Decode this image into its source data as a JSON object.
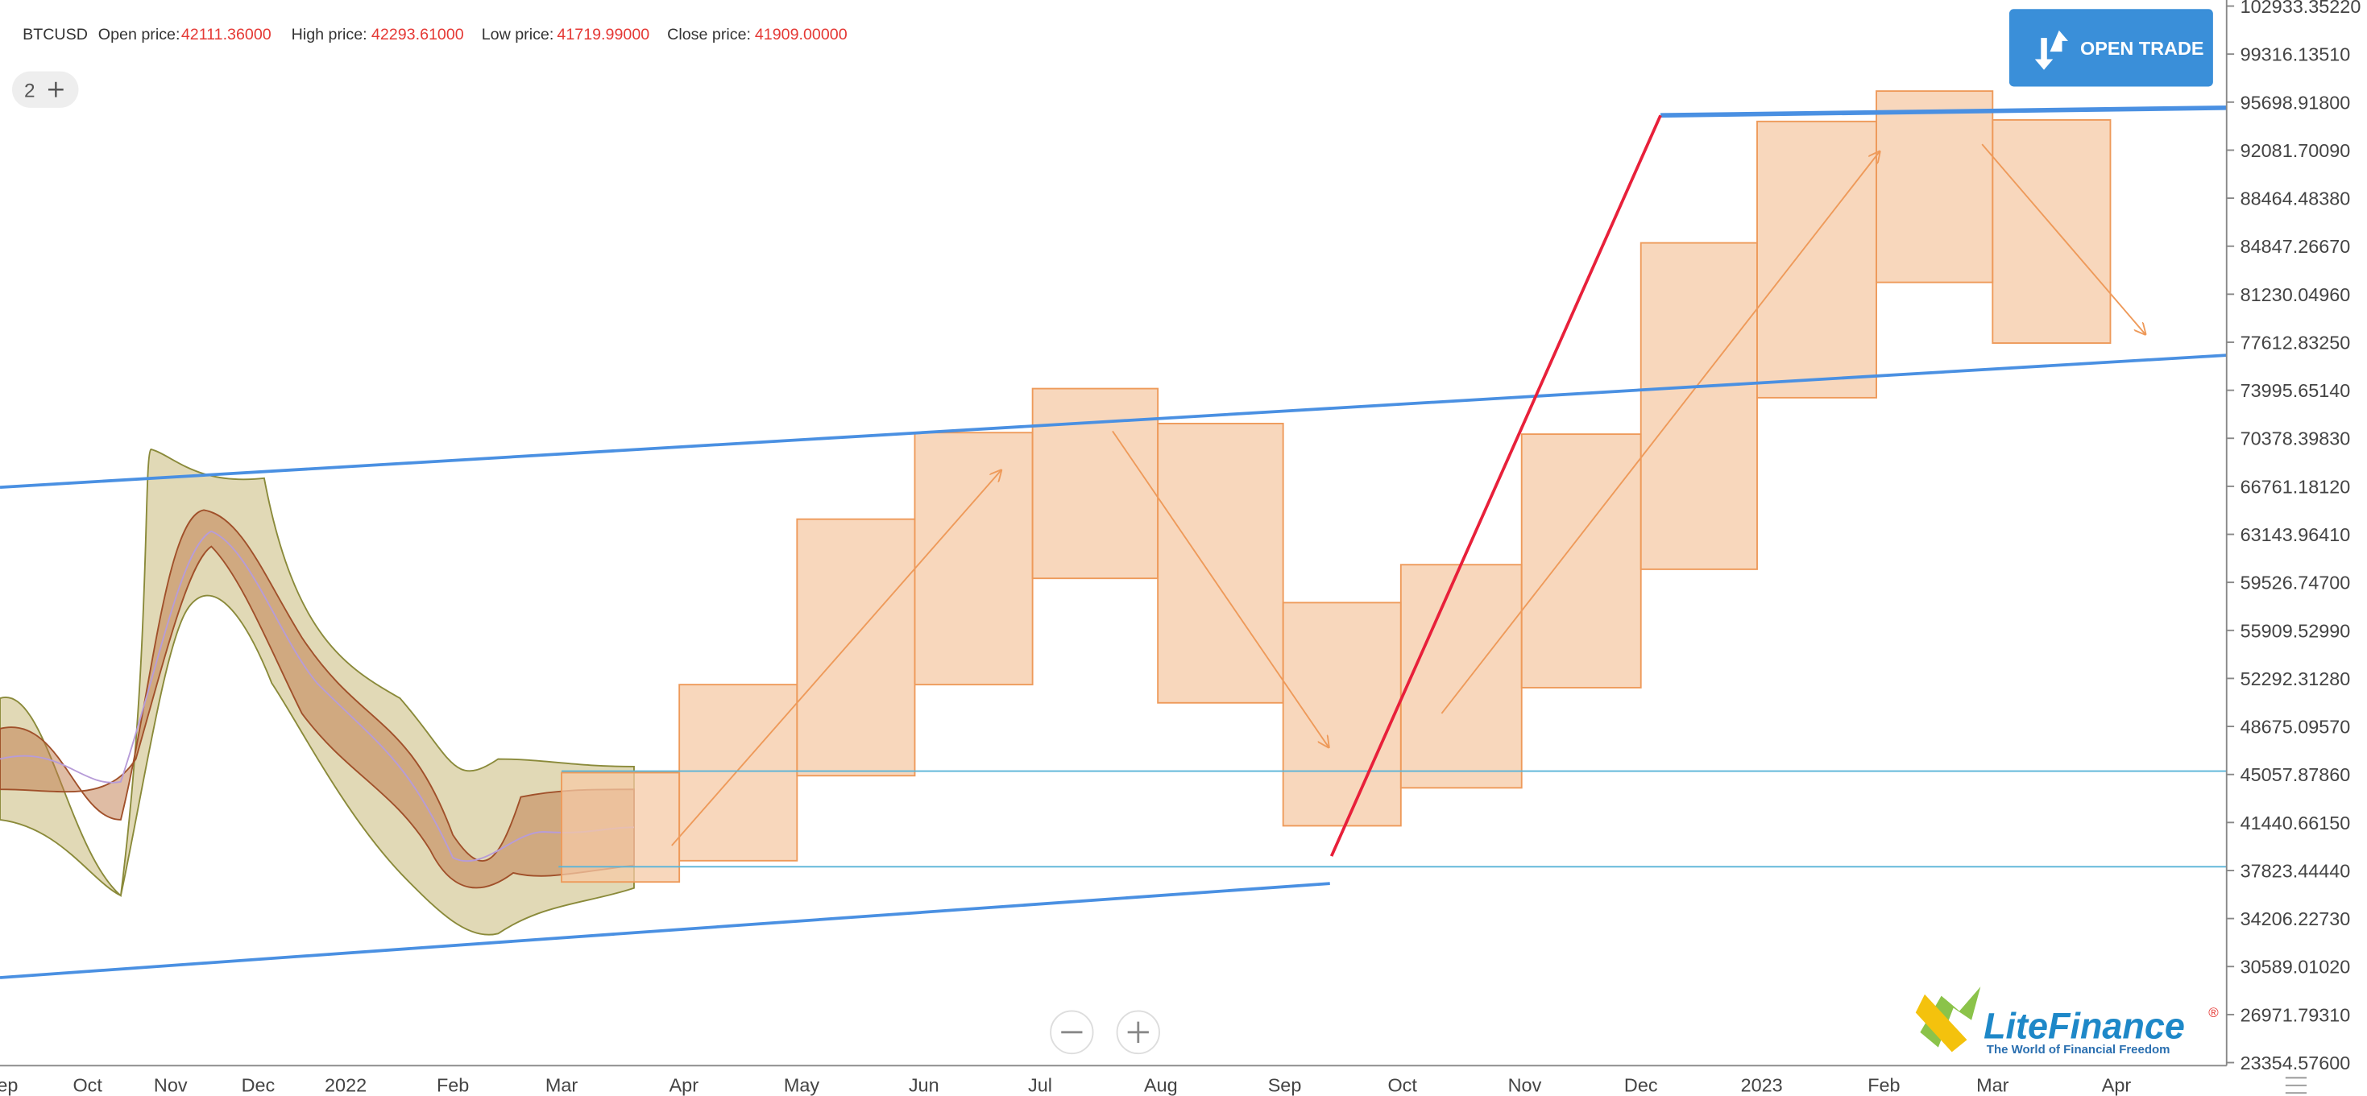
{
  "header": {
    "symbol": "BTCUSD",
    "fields": [
      {
        "label": "Open price:",
        "value": "42111.36000"
      },
      {
        "label": "High price:",
        "value": "42293.61000"
      },
      {
        "label": "Low price:",
        "value": "41719.99000"
      },
      {
        "label": "Close price:",
        "value": "41909.00000"
      }
    ]
  },
  "layers_badge": "2",
  "button": "OPEN TRADE",
  "y_axis": [
    "102933.35220",
    "99316.13510",
    "95698.91800",
    "92081.70090",
    "88464.48380",
    "84847.26670",
    "81230.04960",
    "77612.83250",
    "73995.65140",
    "70378.39830",
    "66761.18120",
    "63143.96410",
    "59526.74700",
    "55909.52990",
    "52292.31280",
    "48675.09570",
    "45057.87860",
    "41440.66150",
    "37823.44440",
    "34206.22730",
    "30589.01020",
    "26971.79310",
    "23354.57600"
  ],
  "x_axis": [
    "ep",
    "Oct",
    "Nov",
    "Dec",
    "2022",
    "Feb",
    "Mar",
    "Apr",
    "May",
    "Jun",
    "Jul",
    "Aug",
    "Sep",
    "Oct",
    "Nov",
    "Dec",
    "2023",
    "Feb",
    "Mar",
    "Apr"
  ],
  "logo": {
    "name": "LiteFinance",
    "mark": "®",
    "tagline": "The World of Financial Freedom"
  }
}
